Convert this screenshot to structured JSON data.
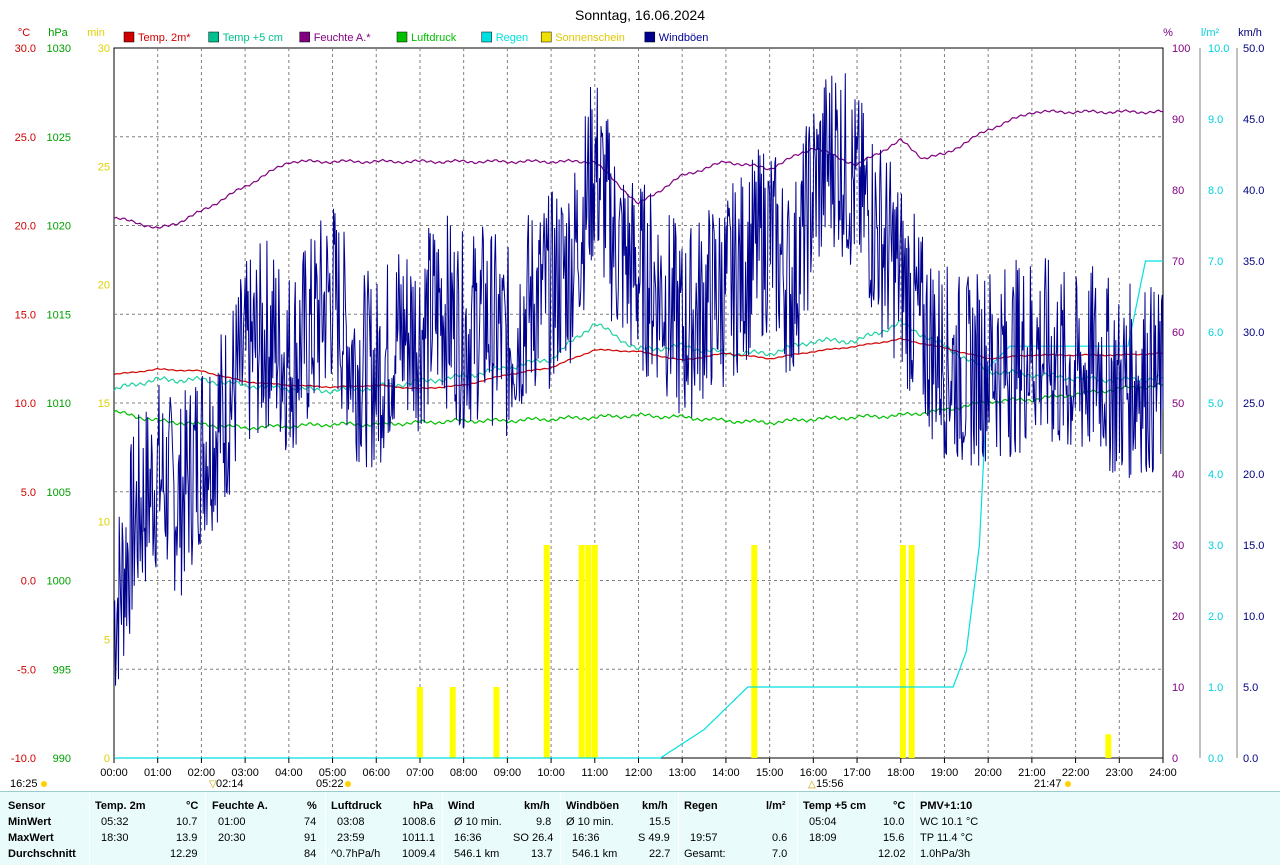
{
  "chart_data": {
    "type": "line",
    "title": "Sonntag, 16.06.2024",
    "x_ticks": [
      "00:00",
      "01:00",
      "02:00",
      "03:00",
      "04:00",
      "05:00",
      "06:00",
      "07:00",
      "08:00",
      "09:00",
      "10:00",
      "11:00",
      "12:00",
      "13:00",
      "14:00",
      "15:00",
      "16:00",
      "17:00",
      "18:00",
      "19:00",
      "20:00",
      "21:00",
      "22:00",
      "23:00",
      "24:00"
    ],
    "axes": {
      "temp": {
        "unit": "°C",
        "min": -10,
        "max": 30,
        "ticks": [
          "30.0",
          "25.0",
          "20.0",
          "15.0",
          "10.0",
          "5.0",
          "0.0",
          "-5.0",
          "-10.0"
        ],
        "color": "#d00000"
      },
      "pressure": {
        "unit": "hPa",
        "min": 990,
        "max": 1030,
        "ticks": [
          "1030",
          "1025",
          "1020",
          "1015",
          "1010",
          "1005",
          "1000",
          "995",
          "990"
        ],
        "color": "#00a000"
      },
      "sun": {
        "unit": "min",
        "min": 0,
        "max": 30,
        "ticks": [
          "30",
          "25",
          "20",
          "15",
          "10",
          "5",
          "0"
        ],
        "color": "#e0d000"
      },
      "humidity": {
        "unit": "%",
        "min": 0,
        "max": 100,
        "ticks": [
          "100",
          "90",
          "80",
          "70",
          "60",
          "50",
          "40",
          "30",
          "20",
          "10",
          "0"
        ],
        "color": "#800080"
      },
      "rain": {
        "unit": "l/m²",
        "min": 0,
        "max": 10,
        "ticks": [
          "10.0",
          "9.0",
          "8.0",
          "7.0",
          "6.0",
          "5.0",
          "4.0",
          "3.0",
          "2.0",
          "1.0",
          "0.0"
        ],
        "color": "#00d0e0"
      },
      "wind": {
        "unit": "km/h",
        "min": 0,
        "max": 50,
        "ticks": [
          "50.0",
          "45.0",
          "40.0",
          "35.0",
          "30.0",
          "25.0",
          "20.0",
          "15.0",
          "10.0",
          "5.0",
          "0.0"
        ],
        "color": "#000080"
      }
    },
    "legend": [
      {
        "name": "Temp. 2m*",
        "color": "#d00000"
      },
      {
        "name": "Temp +5 cm",
        "color": "#00c090"
      },
      {
        "name": "Feuchte A.*",
        "color": "#800080"
      },
      {
        "name": "Luftdruck",
        "color": "#00c000"
      },
      {
        "name": "Regen",
        "color": "#00e0e0"
      },
      {
        "name": "Sonnenschein",
        "color": "#f0e000"
      },
      {
        "name": "Windböen",
        "color": "#000090"
      }
    ],
    "series": {
      "temp2m": {
        "x": [
          0,
          1,
          2,
          3,
          4,
          5,
          6,
          7,
          8,
          9,
          10,
          11,
          12,
          13,
          14,
          15,
          16,
          17,
          18,
          19,
          20,
          21,
          22,
          23,
          24
        ],
        "y": [
          11.6,
          11.9,
          11.8,
          11.2,
          11.0,
          10.9,
          11.0,
          10.8,
          11.0,
          11.6,
          12.0,
          13.0,
          12.9,
          12.4,
          12.8,
          12.5,
          12.9,
          13.2,
          13.6,
          13.1,
          12.5,
          12.7,
          12.7,
          12.7,
          12.8
        ]
      },
      "temp5cm": {
        "x": [
          0,
          0.5,
          1,
          2,
          3,
          4,
          5,
          6,
          7,
          8,
          9,
          10,
          11,
          12,
          13,
          14,
          15,
          16,
          17,
          18,
          19,
          20,
          21,
          22,
          23,
          24
        ],
        "y": [
          10.7,
          11.1,
          11.3,
          11.3,
          11.0,
          10.8,
          10.7,
          10.9,
          11.2,
          11.5,
          12.0,
          12.5,
          14.5,
          13.0,
          13.2,
          12.8,
          12.8,
          13.5,
          13.5,
          14.5,
          13.2,
          11.8,
          11.6,
          11.4,
          11.3,
          11.4
        ]
      },
      "humidity": {
        "x": [
          0,
          0.5,
          1,
          1.5,
          2,
          3,
          4,
          5,
          6,
          7,
          8,
          9,
          10,
          11,
          12,
          13,
          14,
          15,
          16,
          17,
          18,
          18.5,
          19,
          20,
          21,
          22,
          23,
          24
        ],
        "y": [
          76,
          75.5,
          74.5,
          75.5,
          77,
          80.5,
          84,
          84,
          84,
          84,
          84,
          84,
          84,
          84,
          78,
          82,
          84,
          83,
          86,
          83.5,
          87,
          84.5,
          85,
          88.5,
          91,
          91,
          91,
          91
        ]
      },
      "pressure": {
        "x": [
          0,
          1,
          2,
          3,
          4,
          5,
          6,
          7,
          8,
          9,
          10,
          11,
          12,
          13,
          14,
          15,
          16,
          17,
          18,
          19,
          20,
          21,
          22,
          23,
          24
        ],
        "y": [
          1009.5,
          1009.0,
          1008.8,
          1008.6,
          1008.7,
          1008.8,
          1008.8,
          1008.9,
          1009.0,
          1009.0,
          1009.1,
          1009.2,
          1009.3,
          1009.2,
          1009.0,
          1008.9,
          1009.1,
          1009.2,
          1009.3,
          1009.6,
          1010.1,
          1010.2,
          1010.5,
          1010.8,
          1011.0
        ]
      },
      "rain": {
        "x": [
          0,
          12.5,
          13,
          13.5,
          14,
          14.5,
          15,
          16,
          17,
          18,
          19,
          19.2,
          19.5,
          19.8,
          20,
          20.5,
          21,
          22,
          23,
          23.2,
          23.6,
          24
        ],
        "y": [
          0,
          0,
          0.2,
          0.4,
          0.7,
          1.0,
          1.0,
          1.0,
          1.0,
          1.0,
          1.0,
          1.0,
          1.5,
          3.0,
          5.5,
          5.8,
          5.8,
          5.8,
          5.8,
          5.8,
          7.0,
          7.0
        ]
      },
      "windgust": {
        "x": [
          0,
          0.5,
          1,
          1.5,
          2,
          2.5,
          3,
          3.5,
          4,
          4.5,
          5,
          5.5,
          6,
          6.5,
          7,
          7.5,
          8,
          8.5,
          9,
          9.5,
          10,
          10.5,
          11,
          11.5,
          12,
          12.5,
          13,
          13.5,
          14,
          14.5,
          15,
          15.5,
          16,
          16.5,
          17,
          17.5,
          18,
          18.5,
          19,
          19.5,
          20,
          20.5,
          21,
          21.5,
          22,
          22.5,
          23,
          23.5,
          24
        ],
        "y": [
          10,
          17,
          20,
          18,
          22,
          24,
          28,
          30,
          28,
          30,
          33,
          28,
          27,
          30,
          30,
          32,
          30,
          31,
          29,
          32,
          33,
          35,
          42,
          36,
          34,
          33,
          30,
          32,
          33,
          35,
          37,
          33,
          40,
          43,
          40,
          37,
          34,
          30,
          28,
          27,
          28,
          28,
          29,
          28,
          27,
          28,
          26,
          27,
          26
        ]
      },
      "sunshine": {
        "x": [
          7.0,
          7.75,
          8.75,
          9.9,
          10.7,
          10.85,
          11.0,
          14.65,
          18.05,
          18.25,
          22.75
        ],
        "y": [
          3,
          3,
          3,
          9,
          9,
          9,
          9,
          9,
          9,
          9,
          1
        ]
      }
    },
    "gust_amplitude": 14,
    "markers": {
      "sunrise": "05:22",
      "sunset": "21:47",
      "left_time": "16:25",
      "moonrise": "02:14",
      "moonset": "15:56"
    }
  },
  "table": {
    "headers": {
      "sensor": "Sensor",
      "temp2m": "Temp. 2m",
      "temp2m_unit": "°C",
      "humidity": "Feuchte A.",
      "humidity_unit": "%",
      "pressure": "Luftdruck",
      "pressure_unit": "hPa",
      "wind": "Wind",
      "wind_unit": "km/h",
      "gust": "Windböen",
      "gust_unit": "km/h",
      "rain": "Regen",
      "rain_unit": "l/m²",
      "temp5": "Temp +5 cm",
      "temp5_unit": "°C",
      "pmv": "PMV+1:10"
    },
    "rows": [
      {
        "label": "MinWert",
        "t2_time": "05:32",
        "t2_val": "10.7",
        "h_time": "01:00",
        "h_val": "74",
        "p_time": "03:08",
        "p_val": "1008.6",
        "w_label": "Ø 10 min.",
        "w_val": "9.8",
        "g_label": "Ø 10 min.",
        "g_val": "15.5",
        "r_time": "",
        "r_val": "",
        "t5_time": "05:04",
        "t5_val": "10.0",
        "pmv": "WC 10.1 °C"
      },
      {
        "label": "MaxWert",
        "t2_time": "18:30",
        "t2_val": "13.9",
        "h_time": "20:30",
        "h_val": "91",
        "p_time": "23:59",
        "p_val": "1011.1",
        "w_label": "16:36",
        "w_val": "SO 26.4",
        "g_label": "16:36",
        "g_val": "S 49.9",
        "r_time": "19:57",
        "r_val": "0.6",
        "t5_time": "18:09",
        "t5_val": "15.6",
        "pmv": "TP 11.4 °C"
      },
      {
        "label": "Durchschnitt",
        "t2_time": "",
        "t2_val": "12.29",
        "h_time": "",
        "h_val": "84",
        "p_time": "^0.7hPa/h",
        "p_val": "1009.4",
        "w_label": "546.1 km",
        "w_val": "13.7",
        "g_label": "546.1 km",
        "g_val": "22.7",
        "r_time": "Gesamt:",
        "r_val": "7.0",
        "t5_time": "",
        "t5_val": "12.02",
        "pmv": "1.0hPa/3h"
      }
    ]
  }
}
